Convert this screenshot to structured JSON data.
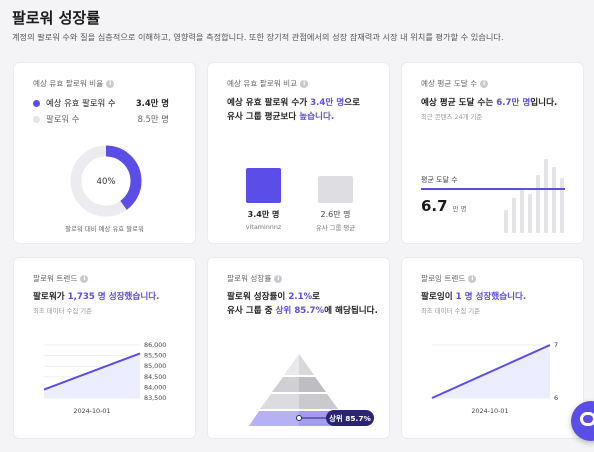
{
  "header": {
    "title": "팔로워 성장률",
    "description": "계정의 팔로워 수와 질을 심층적으로 이해하고, 영향력을 측정합니다. 또한 장기적 관점에서의 성장 잠재력과 시장 내 위치를 평가할 수 있습니다."
  },
  "info_glyph": "i",
  "card1": {
    "title": "예상 유효 팔로워 비율",
    "legend": [
      {
        "label": "예상 유효 팔로워 수",
        "value": "3.4만 명",
        "color": "#5b4de8"
      },
      {
        "label": "팔로워 수",
        "value": "8.5만 명",
        "color": "#e6e6ea"
      }
    ],
    "percent_label": "40%",
    "percent": 0.4,
    "caption": "팔로워 대비 예상 유효 팔로워"
  },
  "card2": {
    "title": "예상 유효 팔로워 비교",
    "headline_pre": "예상 유효 팔로워 수가 ",
    "headline_hl": "3.4만 명",
    "headline_post": "으로",
    "headline2_pre": "유사 그룹 평균보다 ",
    "headline2_hl": "높습니다.",
    "bars": [
      {
        "value_label": "3.4만 명",
        "name": "vitaminnnz",
        "value": 3.4,
        "color": "#5b4de8"
      },
      {
        "value_label": "2.6만 명",
        "name": "유사 그룹 평균",
        "value": 2.6,
        "color": "#dedee2"
      }
    ]
  },
  "card3": {
    "title": "예상 평균 도달 수",
    "headline_pre": "예상 평균 도달 수는 ",
    "headline_hl": "6.7만 명",
    "headline_post": "입니다.",
    "sub": "최근 콘텐츠 24개 기준",
    "avg_label": "평균 도달 수",
    "avg_value": "6.7",
    "avg_unit": "만 명",
    "avg_fraction": 0.6,
    "bar_heights": [
      0.3,
      0.45,
      0.55,
      0.5,
      0.75,
      0.95,
      0.85,
      0.7
    ]
  },
  "card4": {
    "title": "팔로워 트렌드",
    "headline_pre": "팔로워가 ",
    "headline_hl": "1,735 명 성장했습니다.",
    "sub": "최초 데이터 수집 기준",
    "chart_data": {
      "type": "area",
      "x_ticks": [
        "2024-10-01"
      ],
      "y_ticks": [
        "86,000",
        "85,500",
        "85,000",
        "84,500",
        "84,000",
        "83,500"
      ],
      "ylim": [
        83500,
        86000
      ],
      "values": [
        83900,
        85600
      ]
    }
  },
  "card5": {
    "title": "팔로워 성장률",
    "headline_pre": "팔로워 성장률이 ",
    "headline_hl": "2.1%",
    "headline_post": "로",
    "headline2_pre": "유사 그룹 중 ",
    "headline2_hl": "상위 85.7%",
    "headline2_post": "에 해당됩니다.",
    "rank_label": "상위 85.7%"
  },
  "card6": {
    "title": "팔로잉 트렌드",
    "headline_pre": "팔로잉이 ",
    "headline_hl": "1 명 성장했습니다.",
    "sub": "최초 데이터 수집 기준",
    "chart_data": {
      "type": "area",
      "x_ticks": [
        "2024-10-01"
      ],
      "y_ticks": [
        "7",
        "6"
      ],
      "ylim": [
        6,
        7
      ],
      "values": [
        6,
        7
      ]
    }
  }
}
